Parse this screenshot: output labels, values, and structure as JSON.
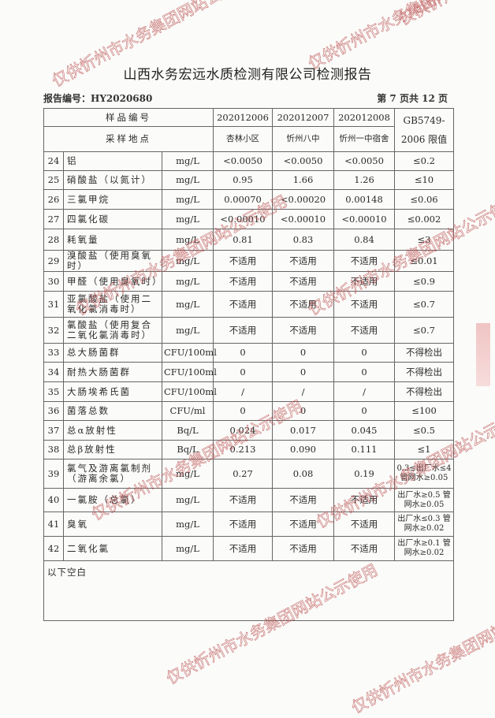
{
  "title": "山西水务宏远水质检测有限公司检测报告",
  "report_no": "报告编号：HY2020680",
  "page_info": "第 7 页共 12 页",
  "watermark": "仅供忻州市水务集团网站公示使用",
  "header": {
    "sample_no_label": "样品编号",
    "site_label": "采样地点",
    "limit_label": "GB5749-2006 限值",
    "samples": [
      {
        "no": "202012006",
        "site": "杏林小区"
      },
      {
        "no": "202012007",
        "site": "忻州八中"
      },
      {
        "no": "202012008",
        "site": "忻州一中宿舍"
      }
    ]
  },
  "rows": [
    {
      "n": "24",
      "name": "铝",
      "unit": "mg/L",
      "v": [
        "<0.0050",
        "<0.0050",
        "<0.0050"
      ],
      "limit": "≤0.2"
    },
    {
      "n": "25",
      "name": "硝酸盐（以氮计）",
      "unit": "mg/L",
      "v": [
        "0.95",
        "1.66",
        "1.26"
      ],
      "limit": "≤10"
    },
    {
      "n": "26",
      "name": "三氯甲烷",
      "unit": "mg/L",
      "v": [
        "0.00070",
        "<0.00020",
        "0.00148"
      ],
      "limit": "≤0.06"
    },
    {
      "n": "27",
      "name": "四氯化碳",
      "unit": "mg/L",
      "v": [
        "<0.00010",
        "<0.00010",
        "<0.00010"
      ],
      "limit": "≤0.002"
    },
    {
      "n": "28",
      "name": "耗氧量",
      "unit": "mg/L",
      "v": [
        "0.81",
        "0.83",
        "0.84"
      ],
      "limit": "≤3"
    },
    {
      "n": "29",
      "name": "溴酸盐（使用臭氧时）",
      "unit": "mg/L",
      "v": [
        "不适用",
        "不适用",
        "不适用"
      ],
      "limit": "≤0.01"
    },
    {
      "n": "30",
      "name": "甲醛（使用臭氧时）",
      "unit": "mg/L",
      "v": [
        "不适用",
        "不适用",
        "不适用"
      ],
      "limit": "≤0.9"
    },
    {
      "n": "31",
      "name": "亚氯酸盐（使用二氧化氯消毒时）",
      "unit": "mg/L",
      "v": [
        "不适用",
        "不适用",
        "不适用"
      ],
      "limit": "≤0.7"
    },
    {
      "n": "32",
      "name": "氯酸盐（使用复合二氧化氯消毒时）",
      "unit": "mg/L",
      "v": [
        "不适用",
        "不适用",
        "不适用"
      ],
      "limit": "≤0.7"
    },
    {
      "n": "33",
      "name": "总大肠菌群",
      "unit": "CFU/100ml",
      "v": [
        "0",
        "0",
        "0"
      ],
      "limit": "不得检出"
    },
    {
      "n": "34",
      "name": "耐热大肠菌群",
      "unit": "CFU/100ml",
      "v": [
        "0",
        "0",
        "0"
      ],
      "limit": "不得检出"
    },
    {
      "n": "35",
      "name": "大肠埃希氏菌",
      "unit": "CFU/100ml",
      "v": [
        "/",
        "/",
        "/"
      ],
      "limit": "不得检出"
    },
    {
      "n": "36",
      "name": "菌落总数",
      "unit": "CFU/ml",
      "v": [
        "0",
        "0",
        "0"
      ],
      "limit": "≤100"
    },
    {
      "n": "37",
      "name": "总α放射性",
      "unit": "Bq/L",
      "v": [
        "0.024",
        "0.017",
        "0.045"
      ],
      "limit": "≤0.5"
    },
    {
      "n": "38",
      "name": "总β放射性",
      "unit": "Bq/L",
      "v": [
        "0.213",
        "0.090",
        "0.111"
      ],
      "limit": "≤1"
    },
    {
      "n": "39",
      "name": "氯气及游离氯制剂（游离余氯）",
      "unit": "mg/L",
      "v": [
        "0.27",
        "0.08",
        "0.19"
      ],
      "limit": "0.3≤出厂水≤4 管网水≥0.05"
    },
    {
      "n": "40",
      "name": "一氯胺（总氯）",
      "unit": "mg/L",
      "v": [
        "不适用",
        "不适用",
        "不适用"
      ],
      "limit": "出厂水≥0.5 管网水≥0.05"
    },
    {
      "n": "41",
      "name": "臭氧",
      "unit": "mg/L",
      "v": [
        "不适用",
        "不适用",
        "不适用"
      ],
      "limit": "出厂水≤0.3 管网水≥0.02"
    },
    {
      "n": "42",
      "name": "二氧化氯",
      "unit": "mg/L",
      "v": [
        "不适用",
        "不适用",
        "不适用"
      ],
      "limit": "出厂水≥0.1 管网水≥0.02"
    }
  ],
  "footer_note": "以下空白"
}
